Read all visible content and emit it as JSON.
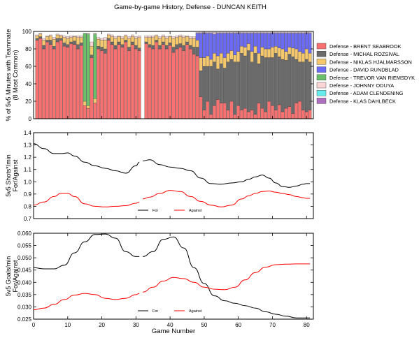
{
  "figure": {
    "title": "Game-by-game History, Defense - DUNCAN KEITH",
    "xlabel": "Game Number"
  },
  "chart_data": [
    {
      "type": "bar",
      "stacked": true,
      "title": "Game-by-game History, Defense - DUNCAN KEITH",
      "ylabel": "% of 5v5 Minutes with Teammate (8 Most Common)",
      "ylim": [
        0,
        100
      ],
      "yticks": [
        0,
        20,
        40,
        60,
        80,
        100
      ],
      "xlim": [
        0,
        82
      ],
      "x_start": 1,
      "gap_after_game": 31,
      "legend_position": "right",
      "categories": [
        1,
        2,
        3,
        4,
        5,
        6,
        7,
        8,
        9,
        10,
        11,
        12,
        13,
        14,
        15,
        16,
        17,
        18,
        19,
        20,
        21,
        22,
        23,
        24,
        25,
        26,
        27,
        28,
        29,
        30,
        31,
        33,
        34,
        35,
        36,
        37,
        38,
        39,
        40,
        41,
        42,
        43,
        44,
        45,
        46,
        47,
        48,
        49,
        50,
        51,
        52,
        53,
        54,
        55,
        56,
        57,
        58,
        59,
        60,
        61,
        62,
        63,
        64,
        65,
        66,
        67,
        68,
        69,
        70,
        71,
        72,
        73,
        74,
        75,
        76,
        77,
        78,
        79,
        80,
        81
      ],
      "series": [
        {
          "name": "Defense - BRENT SEABROOK",
          "color": "#f87171",
          "values": [
            90,
            92,
            80,
            88,
            85,
            80,
            88,
            90,
            83,
            82,
            86,
            85,
            80,
            84,
            15,
            12,
            70,
            18,
            80,
            78,
            75,
            90,
            85,
            80,
            85,
            82,
            88,
            78,
            85,
            80,
            78,
            86,
            82,
            80,
            88,
            80,
            85,
            80,
            84,
            76,
            80,
            82,
            78,
            85,
            80,
            74,
            72,
            25,
            10,
            20,
            5,
            15,
            22,
            18,
            18,
            10,
            20,
            5,
            15,
            10,
            12,
            8,
            10,
            5,
            18,
            12,
            8,
            20,
            15,
            10,
            16,
            8,
            12,
            14,
            6,
            18,
            20,
            10,
            8,
            10
          ]
        },
        {
          "name": "Defense - MICHAL ROZSIVAL",
          "color": "#6b6b6b",
          "values": [
            2,
            2,
            4,
            2,
            5,
            3,
            4,
            2,
            4,
            3,
            2,
            4,
            5,
            3,
            0,
            0,
            3,
            0,
            3,
            4,
            5,
            2,
            3,
            4,
            3,
            3,
            2,
            4,
            3,
            4,
            3,
            2,
            3,
            4,
            2,
            4,
            3,
            4,
            3,
            6,
            5,
            4,
            6,
            3,
            4,
            8,
            10,
            30,
            50,
            40,
            55,
            50,
            35,
            45,
            40,
            55,
            48,
            60,
            50,
            65,
            60,
            70,
            55,
            70,
            45,
            60,
            62,
            50,
            55,
            65,
            55,
            60,
            55,
            60,
            65,
            50,
            45,
            55,
            60,
            55
          ]
        },
        {
          "name": "Defense - NIKLAS HJALMARSSON",
          "color": "#f5c86e",
          "values": [
            3,
            3,
            6,
            4,
            5,
            8,
            4,
            3,
            6,
            7,
            5,
            5,
            8,
            6,
            5,
            3,
            10,
            5,
            8,
            8,
            10,
            4,
            6,
            8,
            6,
            7,
            5,
            10,
            6,
            8,
            12,
            5,
            8,
            9,
            5,
            8,
            6,
            8,
            7,
            10,
            8,
            8,
            9,
            6,
            8,
            10,
            8,
            15,
            10,
            12,
            8,
            10,
            15,
            12,
            12,
            10,
            10,
            8,
            12,
            8,
            10,
            8,
            12,
            8,
            12,
            10,
            10,
            10,
            12,
            8,
            10,
            12,
            10,
            8,
            10,
            12,
            12,
            10,
            12,
            10
          ]
        },
        {
          "name": "Defense - DAVID RUNDBLAD",
          "color": "#6b6bf5",
          "values": [
            0,
            0,
            0,
            0,
            0,
            0,
            0,
            0,
            0,
            0,
            0,
            0,
            0,
            0,
            0,
            0,
            0,
            0,
            0,
            0,
            0,
            0,
            0,
            0,
            0,
            0,
            0,
            0,
            0,
            0,
            0,
            0,
            0,
            0,
            0,
            0,
            0,
            0,
            0,
            0,
            0,
            0,
            0,
            0,
            0,
            0,
            8,
            28,
            28,
            26,
            30,
            22,
            26,
            23,
            28,
            23,
            20,
            25,
            21,
            15,
            16,
            12,
            21,
            15,
            23,
            16,
            18,
            18,
            16,
            15,
            17,
            18,
            21,
            16,
            17,
            18,
            21,
            23,
            18,
            23
          ]
        },
        {
          "name": "Defense - TREVOR VAN RIEMSDYK",
          "color": "#6bbf6b",
          "values": [
            0,
            0,
            0,
            0,
            0,
            0,
            0,
            0,
            0,
            0,
            0,
            0,
            0,
            0,
            78,
            82,
            0,
            74,
            0,
            0,
            0,
            0,
            0,
            0,
            0,
            0,
            0,
            0,
            0,
            0,
            0,
            0,
            0,
            0,
            0,
            0,
            0,
            0,
            0,
            0,
            0,
            0,
            0,
            0,
            0,
            0,
            0,
            0,
            0,
            0,
            0,
            0,
            0,
            0,
            0,
            0,
            0,
            0,
            0,
            0,
            0,
            0,
            0,
            0,
            0,
            0,
            0,
            0,
            0,
            0,
            0,
            0,
            0,
            0,
            0,
            0,
            0,
            0,
            0,
            0
          ]
        },
        {
          "name": "Defense - JOHNNY ODUYA",
          "color": "#fbd5d5",
          "values": [
            1,
            1,
            2,
            1,
            1,
            2,
            1,
            1,
            2,
            2,
            2,
            1,
            2,
            2,
            0,
            1,
            5,
            1,
            2,
            2,
            3,
            1,
            2,
            2,
            1,
            2,
            1,
            2,
            2,
            2,
            2,
            2,
            2,
            2,
            1,
            2,
            2,
            2,
            1,
            2,
            2,
            2,
            2,
            1,
            2,
            2,
            1,
            1,
            1,
            1,
            1,
            2,
            1,
            1,
            1,
            1,
            1,
            1,
            1,
            1,
            1,
            1,
            1,
            1,
            1,
            1,
            1,
            1,
            1,
            1,
            1,
            1,
            1,
            1,
            1,
            1,
            1,
            1,
            1,
            1
          ]
        },
        {
          "name": "Defense - ADAM CLENDENING",
          "color": "#66ecec",
          "values": [
            0,
            0,
            0,
            0,
            0,
            0,
            0,
            0,
            0,
            0,
            0,
            0,
            0,
            0,
            0,
            0,
            0,
            0,
            0,
            0,
            0,
            0,
            0,
            0,
            0,
            0,
            0,
            0,
            0,
            0,
            0,
            0,
            0,
            0,
            0,
            0,
            0,
            0,
            0,
            0,
            0,
            0,
            0,
            0,
            0,
            0,
            0,
            0,
            0,
            0,
            0,
            0,
            0,
            0,
            0,
            0,
            0,
            0,
            0,
            0,
            0,
            0,
            0,
            0,
            0,
            0,
            0,
            0,
            0,
            0,
            0,
            0,
            0,
            0,
            0,
            0,
            0,
            0,
            0,
            0
          ]
        },
        {
          "name": "Defense - KLAS DAHLBECK",
          "color": "#b070c0",
          "values": [
            0,
            0,
            0,
            0,
            0,
            0,
            0,
            0,
            0,
            0,
            0,
            0,
            0,
            0,
            0,
            0,
            0,
            0,
            0,
            0,
            0,
            0,
            0,
            0,
            0,
            0,
            0,
            0,
            0,
            0,
            0,
            0,
            0,
            0,
            0,
            0,
            0,
            0,
            0,
            0,
            0,
            0,
            0,
            0,
            0,
            0,
            0,
            0,
            0,
            0,
            0,
            0,
            0,
            0,
            0,
            0,
            0,
            0,
            0,
            0,
            0,
            0,
            0,
            0,
            0,
            0,
            0,
            0,
            0,
            0,
            0,
            0,
            0,
            0,
            0,
            0,
            0,
            0,
            0,
            0
          ]
        }
      ]
    },
    {
      "type": "line",
      "ylabel": "5v5 Shots*/min For/Against",
      "ylim": [
        0.7,
        1.4
      ],
      "yticks": [
        "0.7",
        "0.8",
        "0.9",
        "1.0",
        "1.1",
        "1.2",
        "1.3",
        "1.4"
      ],
      "xlim": [
        0,
        82
      ],
      "gap_after_game": 31,
      "legend_position": "lower-center",
      "series": [
        {
          "name": "For",
          "color": "#000000",
          "x": [
            0,
            3,
            6,
            8,
            10,
            12,
            15,
            18,
            21,
            24,
            27,
            30,
            31,
            32,
            34,
            37,
            40,
            43,
            46,
            49,
            52,
            55,
            58,
            61,
            63,
            65,
            67,
            69,
            71,
            73,
            75,
            77,
            79,
            80,
            81
          ],
          "y": [
            1.31,
            1.27,
            1.23,
            1.23,
            1.235,
            1.21,
            1.16,
            1.13,
            1.11,
            1.09,
            1.07,
            1.13,
            1.16,
            1.17,
            1.18,
            1.14,
            1.12,
            1.11,
            1.09,
            1.03,
            0.985,
            0.98,
            0.99,
            1.0,
            1.02,
            1.04,
            1.055,
            1.03,
            0.99,
            0.96,
            0.955,
            0.965,
            0.98,
            0.985,
            0.985
          ]
        },
        {
          "name": "Against",
          "color": "#ff0000",
          "x": [
            0,
            3,
            6,
            8,
            10,
            12,
            15,
            18,
            21,
            24,
            27,
            30,
            31,
            32,
            34,
            37,
            40,
            43,
            46,
            49,
            52,
            55,
            58,
            61,
            63,
            65,
            67,
            69,
            71,
            73,
            75,
            77,
            79,
            80,
            81
          ],
          "y": [
            0.81,
            0.835,
            0.88,
            0.905,
            0.905,
            0.88,
            0.82,
            0.8,
            0.795,
            0.8,
            0.805,
            0.825,
            0.835,
            0.86,
            0.875,
            0.905,
            0.93,
            0.92,
            0.88,
            0.84,
            0.81,
            0.795,
            0.81,
            0.86,
            0.885,
            0.905,
            0.92,
            0.925,
            0.915,
            0.905,
            0.895,
            0.88,
            0.87,
            0.865,
            0.865
          ]
        }
      ]
    },
    {
      "type": "line",
      "ylabel": "5v5 Goals/min For/Against",
      "ylim": [
        0.025,
        0.06
      ],
      "yticks": [
        "0.025",
        "0.030",
        "0.035",
        "0.040",
        "0.045",
        "0.050",
        "0.055",
        "0.060"
      ],
      "xticks": [
        0,
        10,
        20,
        30,
        40,
        50,
        60,
        70,
        80
      ],
      "xlim": [
        0,
        82
      ],
      "xlabel": "Game Number",
      "gap_after_game": 31,
      "legend_position": "lower-center",
      "series": [
        {
          "name": "For",
          "color": "#000000",
          "x": [
            0,
            3,
            6,
            9,
            12,
            15,
            18,
            21,
            24,
            27,
            30,
            31,
            32,
            35,
            38,
            41,
            44,
            47,
            50,
            53,
            56,
            59,
            62,
            65,
            68,
            71,
            74,
            77,
            80,
            81
          ],
          "y": [
            0.046,
            0.0455,
            0.0455,
            0.047,
            0.052,
            0.0565,
            0.0595,
            0.0597,
            0.058,
            0.0525,
            0.0505,
            0.0505,
            0.0505,
            0.0525,
            0.0575,
            0.0585,
            0.054,
            0.046,
            0.0395,
            0.0345,
            0.0325,
            0.0315,
            0.0305,
            0.0295,
            0.028,
            0.027,
            0.0262,
            0.0255,
            0.0255,
            0.0255
          ]
        },
        {
          "name": "Against",
          "color": "#ff0000",
          "x": [
            0,
            3,
            6,
            9,
            12,
            15,
            18,
            21,
            24,
            27,
            30,
            31,
            32,
            35,
            38,
            41,
            44,
            47,
            50,
            53,
            56,
            59,
            62,
            65,
            68,
            71,
            74,
            77,
            80,
            81
          ],
          "y": [
            0.0288,
            0.0295,
            0.031,
            0.033,
            0.0348,
            0.0355,
            0.035,
            0.0335,
            0.033,
            0.0335,
            0.035,
            0.0355,
            0.036,
            0.038,
            0.0405,
            0.042,
            0.0415,
            0.04,
            0.038,
            0.0372,
            0.037,
            0.038,
            0.041,
            0.044,
            0.0462,
            0.0472,
            0.0474,
            0.0475,
            0.0475,
            0.0475
          ]
        }
      ]
    }
  ]
}
